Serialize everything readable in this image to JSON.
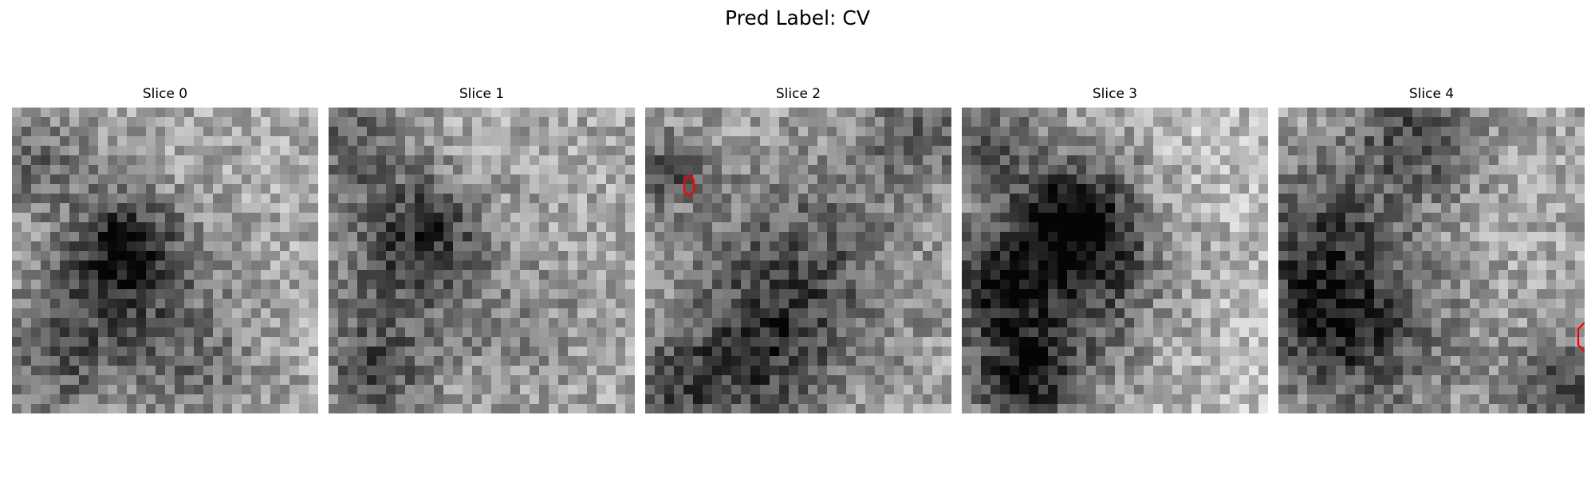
{
  "figure": {
    "title": "Pred Label: CV"
  },
  "slices": [
    {
      "label": "Slice 0"
    },
    {
      "label": "Slice 1"
    },
    {
      "label": "Slice 2",
      "marker": "red-contour"
    },
    {
      "label": "Slice 3"
    },
    {
      "label": "Slice 4",
      "marker": "red-contour"
    }
  ],
  "colors": {
    "contour": "#ff0000",
    "background": "#ffffff"
  }
}
